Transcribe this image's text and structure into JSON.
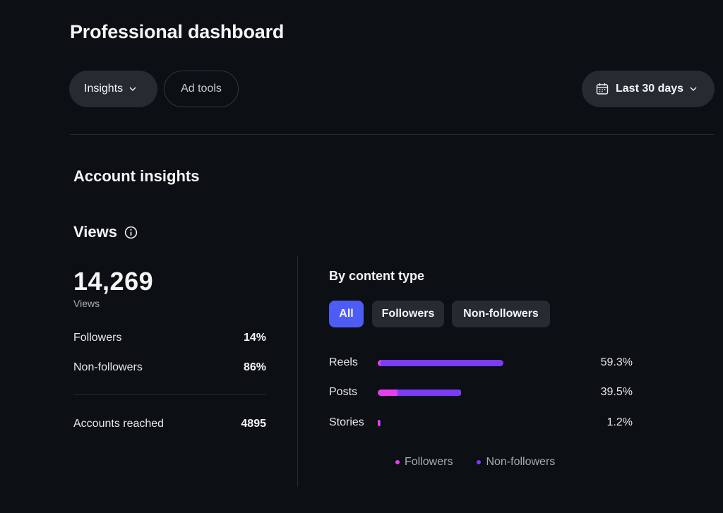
{
  "header": {
    "title": "Professional dashboard",
    "tabs": [
      {
        "label": "Insights"
      },
      {
        "label": "Ad tools"
      }
    ],
    "date_range": "Last 30 days"
  },
  "account_insights": {
    "title": "Account insights",
    "views": {
      "title": "Views",
      "total": "14,269",
      "total_caption": "Views",
      "followers_label": "Followers",
      "followers_pct": "14%",
      "nonfollowers_label": "Non-followers",
      "nonfollowers_pct": "86%",
      "reached_label": "Accounts reached",
      "reached_value": "4895"
    },
    "by_content_type": {
      "title": "By content type",
      "filters": [
        {
          "label": "All",
          "selected": true
        },
        {
          "label": "Followers",
          "selected": false
        },
        {
          "label": "Non-followers",
          "selected": false
        }
      ],
      "rows": [
        {
          "label": "Reels",
          "pct_label": "59.3%",
          "value": 59.3,
          "followers_share": 0.02
        },
        {
          "label": "Posts",
          "pct_label": "39.5%",
          "value": 39.5,
          "followers_share": 0.24
        },
        {
          "label": "Stories",
          "pct_label": "1.2%",
          "value": 1.2,
          "followers_share": 0.5
        }
      ],
      "legend": [
        {
          "label": "Followers",
          "color": "#e63ff0"
        },
        {
          "label": "Non-followers",
          "color": "#7a3cf7"
        }
      ]
    }
  },
  "colors": {
    "accent": "#4d5cf5",
    "followers": "#e63ff0",
    "non_followers": "#7a3cf7",
    "background": "#0c0f14"
  },
  "icons": {
    "info": "info-icon",
    "calendar": "calendar-icon",
    "chevron": "chevron-down-icon"
  }
}
